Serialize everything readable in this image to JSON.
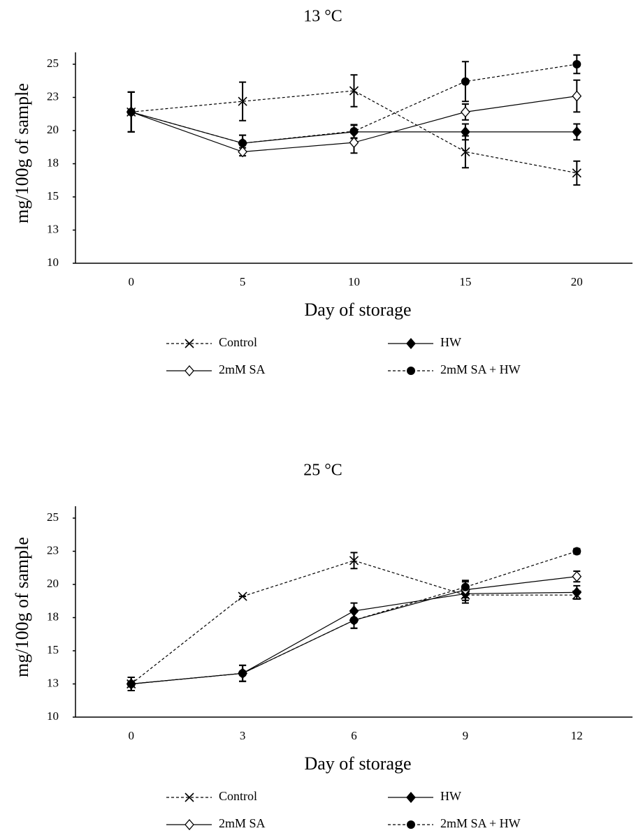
{
  "chart_data": [
    {
      "type": "line",
      "title": "13 °C",
      "x_label": "Day of storage",
      "y_label": "mg/100g of sample",
      "x": [
        0,
        5,
        10,
        15,
        20
      ],
      "xlim": [
        -2.5,
        22.5
      ],
      "ylim": [
        10,
        25
      ],
      "yticks": [
        10,
        {
          "value": 12.5,
          "label": "13"
        },
        15,
        {
          "value": 17.5,
          "label": "18"
        },
        20,
        {
          "value": 22.5,
          "label": "23"
        },
        25
      ],
      "series": [
        {
          "name": "Control",
          "color": "#000000",
          "dash": true,
          "marker": "x",
          "values": [
            21.4,
            22.2,
            23.0,
            18.4,
            16.8
          ],
          "errors": [
            1.5,
            1.45,
            1.2,
            1.2,
            0.9
          ]
        },
        {
          "name": "HW",
          "color": "#000000",
          "dash": false,
          "marker": "diamond-filled",
          "values": [
            21.4,
            19.05,
            19.9,
            19.9,
            19.9
          ],
          "errors": [
            1.5,
            0.6,
            0.5,
            0.6,
            0.6
          ]
        },
        {
          "name": "2mM SA",
          "color": "#000000",
          "dash": false,
          "marker": "diamond-open",
          "values": [
            21.4,
            18.4,
            19.1,
            21.4,
            22.6
          ],
          "errors": [
            1.5,
            0.3,
            0.8,
            0.6,
            1.2
          ]
        },
        {
          "name": "2mM SA + HW",
          "color": "#000000",
          "dash": true,
          "marker": "circle",
          "values": [
            21.4,
            19.05,
            19.95,
            23.7,
            25.0
          ],
          "errors": [
            1.5,
            0.6,
            0.5,
            1.5,
            0.7
          ]
        }
      ]
    },
    {
      "type": "line",
      "title": "25 °C",
      "x_label": "Day of storage",
      "y_label": "mg/100g of sample",
      "x": [
        0,
        3,
        6,
        9,
        12
      ],
      "xlim": [
        -1.5,
        13.5
      ],
      "ylim": [
        10,
        25
      ],
      "yticks": [
        10,
        {
          "value": 12.5,
          "label": "13"
        },
        15,
        {
          "value": 17.5,
          "label": "18"
        },
        20,
        {
          "value": 22.5,
          "label": "23"
        },
        25
      ],
      "series": [
        {
          "name": "Control",
          "color": "#000000",
          "dash": true,
          "marker": "x",
          "values": [
            12.5,
            19.1,
            21.8,
            19.2,
            19.2
          ],
          "errors": [
            0.5,
            0.0,
            0.6,
            0.6,
            0.3
          ]
        },
        {
          "name": "HW",
          "color": "#000000",
          "dash": false,
          "marker": "diamond-filled",
          "values": [
            12.5,
            13.3,
            18.0,
            19.3,
            19.4
          ],
          "errors": [
            0.5,
            0.6,
            0.6,
            0.5,
            0.5
          ]
        },
        {
          "name": "2mM SA",
          "color": "#000000",
          "dash": false,
          "marker": "diamond-open",
          "values": [
            12.5,
            13.3,
            17.3,
            19.6,
            20.6
          ],
          "errors": [
            0.5,
            0.6,
            0.6,
            0.6,
            0.4
          ]
        },
        {
          "name": "2mM SA + HW",
          "color": "#000000",
          "dash": true,
          "marker": "circle",
          "values": [
            12.5,
            13.3,
            17.3,
            19.8,
            22.5
          ],
          "errors": [
            0.5,
            0.6,
            0.6,
            0.5,
            0.2
          ]
        }
      ]
    }
  ]
}
